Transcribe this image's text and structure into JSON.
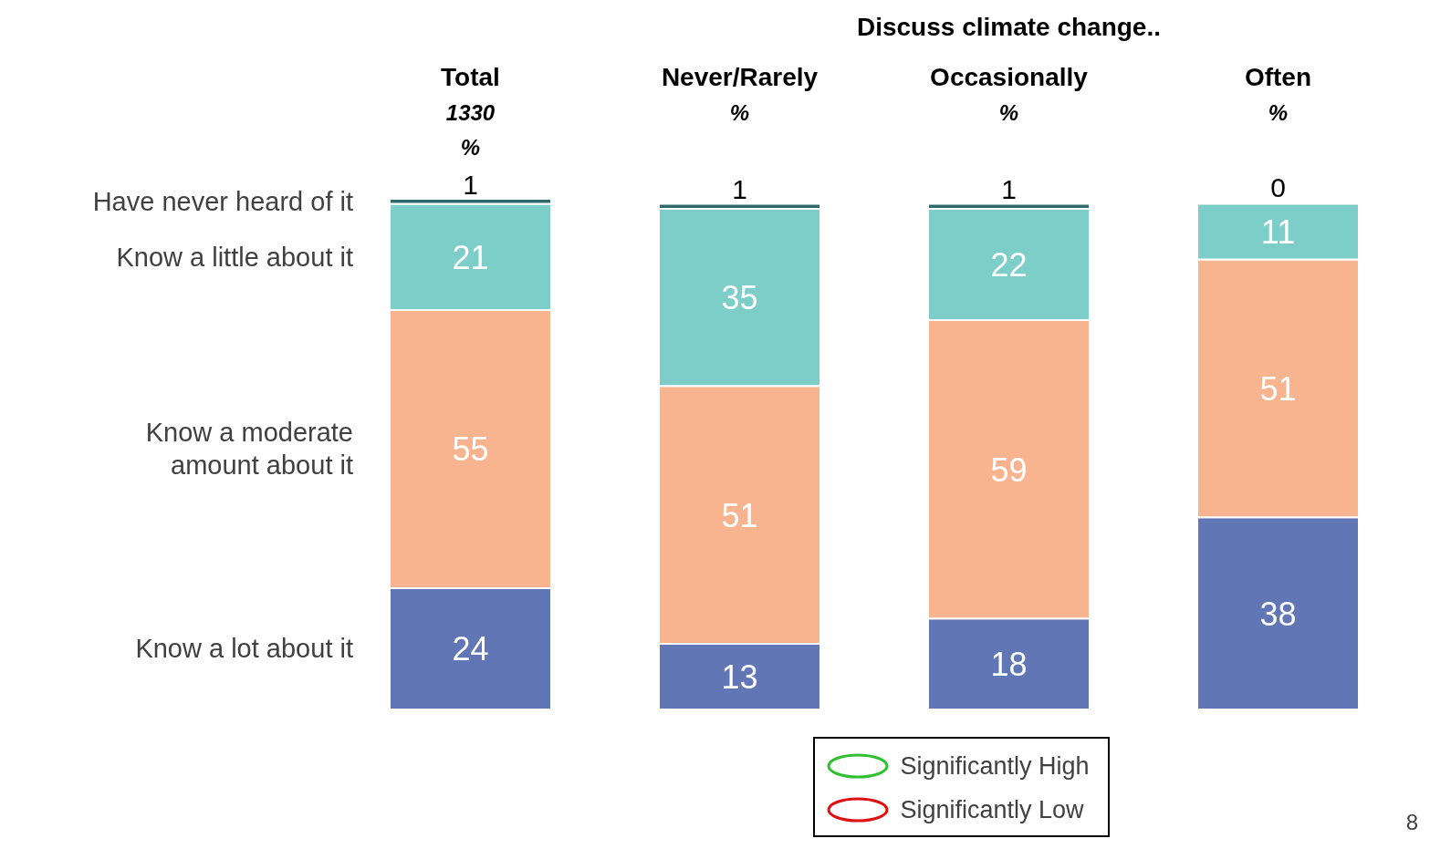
{
  "chart_data": {
    "type": "bar",
    "stacked": true,
    "data_labels": true,
    "title": "Discuss climate change..",
    "categories": [
      "Total\n1330\n%",
      "Never/Rarely\n%",
      "Occasionally\n%",
      "Often\n%"
    ],
    "series": [
      {
        "name": "Know a lot about it",
        "color": "#6176b4",
        "values": [
          24,
          13,
          18,
          38
        ]
      },
      {
        "name": "Know a moderate amount about it",
        "color": "#f8b48f",
        "values": [
          55,
          51,
          59,
          51
        ]
      },
      {
        "name": "Know a little about it",
        "color": "#7dcdc8",
        "values": [
          21,
          35,
          22,
          11
        ]
      },
      {
        "name": "Have never heard of it",
        "color": "#2f6b6b",
        "values": [
          1,
          1,
          1,
          0
        ]
      }
    ],
    "annotations": [
      "Significantly High",
      "Significantly Low",
      "8"
    ]
  }
}
